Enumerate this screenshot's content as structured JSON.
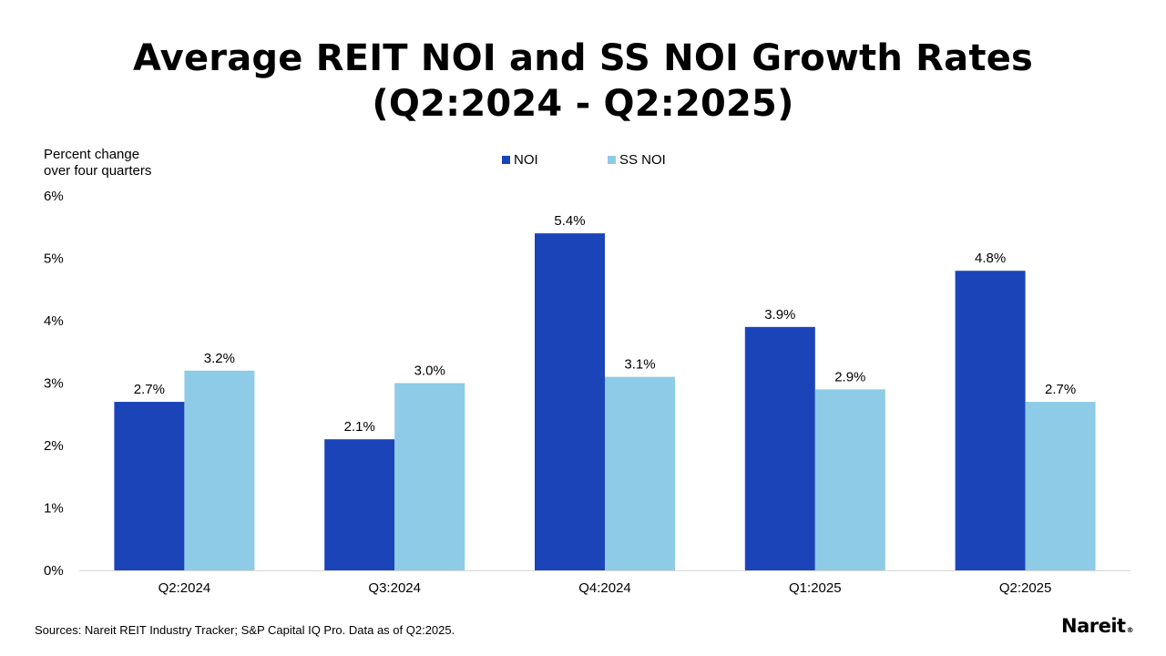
{
  "title": {
    "line1": "Average REIT NOI and SS NOI Growth Rates",
    "line2": "(Q2:2024 - Q2:2025)"
  },
  "chart_data": {
    "type": "bar",
    "title": "Average REIT NOI and SS NOI Growth Rates (Q2:2024 - Q2:2025)",
    "ylabel_line1": "Percent change",
    "ylabel_line2": "over four quarters",
    "xlabel": "",
    "categories": [
      "Q2:2024",
      "Q3:2024",
      "Q4:2024",
      "Q1:2025",
      "Q2:2025"
    ],
    "series": [
      {
        "name": "NOI",
        "color": "#1c44b9",
        "values": [
          2.7,
          2.1,
          5.4,
          3.9,
          4.8
        ],
        "labels": [
          "2.7%",
          "2.1%",
          "5.4%",
          "3.9%",
          "4.8%"
        ]
      },
      {
        "name": "SS NOI",
        "color": "#8ecbe6",
        "values": [
          3.2,
          3.0,
          3.1,
          2.9,
          2.7
        ],
        "labels": [
          "3.2%",
          "3.0%",
          "3.1%",
          "2.9%",
          "2.7%"
        ]
      }
    ],
    "ylim": [
      0,
      6
    ],
    "yticks": [
      0,
      1,
      2,
      3,
      4,
      5,
      6
    ],
    "ytick_labels": [
      "0%",
      "1%",
      "2%",
      "3%",
      "4%",
      "5%",
      "6%"
    ],
    "grid": false,
    "legend_position": "top-center"
  },
  "footer": {
    "sources": "Sources: Nareit REIT Industry Tracker; S&P Capital IQ Pro. Data as of Q2:2025."
  },
  "logo": {
    "text": "Nareit",
    "mark": "®"
  }
}
